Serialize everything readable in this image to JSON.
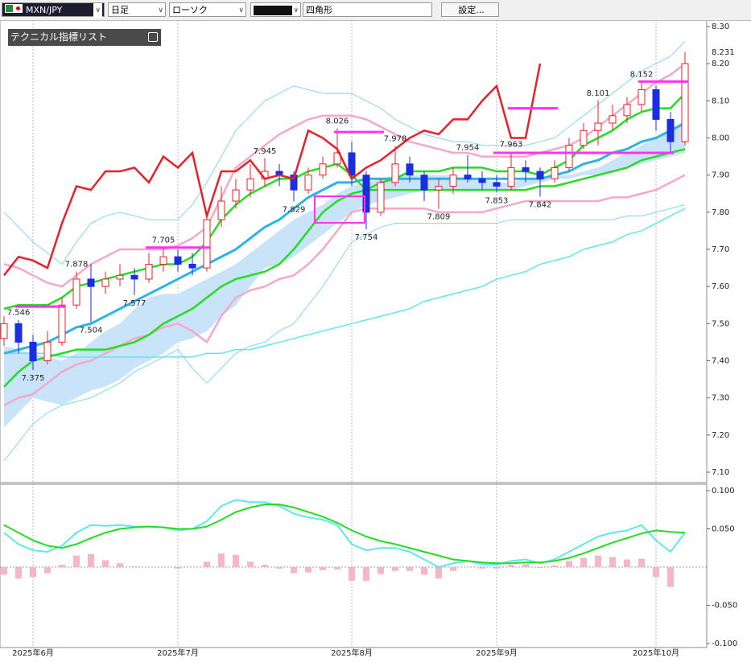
{
  "toolbar": {
    "symbol": "MXN/JPY",
    "timeframe": "日足",
    "chart_type": "ローソク",
    "tool": "四角形",
    "settings_button": "設定...",
    "indicator_list": "テクニカル指標リスト"
  },
  "chart_data": [
    {
      "type": "candlestick",
      "categories": [
        null,
        null,
        "2025年6月",
        null,
        null,
        null,
        null,
        null,
        null,
        null,
        null,
        null,
        "2025年7月",
        null,
        null,
        null,
        null,
        null,
        null,
        null,
        null,
        null,
        null,
        null,
        "2025年8月",
        null,
        null,
        null,
        null,
        null,
        null,
        null,
        null,
        null,
        "2025年9月",
        null,
        null,
        null,
        null,
        null,
        null,
        null,
        null,
        null,
        null,
        "2025年10月",
        null,
        null
      ],
      "open": [
        7.46,
        7.5,
        7.45,
        7.4,
        7.45,
        7.55,
        7.62,
        7.6,
        7.62,
        7.63,
        7.62,
        7.66,
        7.68,
        7.66,
        7.65,
        7.78,
        7.83,
        7.86,
        7.89,
        7.91,
        7.9,
        7.86,
        7.9,
        7.93,
        7.96,
        7.9,
        7.8,
        7.88,
        7.93,
        7.9,
        7.86,
        7.87,
        7.9,
        7.89,
        7.88,
        7.87,
        7.92,
        7.91,
        7.89,
        7.92,
        7.98,
        8.02,
        8.04,
        8.06,
        8.09,
        8.13,
        8.05,
        7.99
      ],
      "high": [
        7.52,
        7.51,
        7.47,
        7.48,
        7.57,
        7.64,
        7.66,
        7.64,
        7.66,
        7.65,
        7.69,
        7.705,
        7.7,
        7.69,
        7.8,
        7.87,
        7.89,
        7.93,
        7.945,
        7.93,
        7.91,
        7.92,
        7.95,
        8.026,
        7.99,
        7.91,
        7.89,
        7.978,
        7.95,
        7.91,
        7.89,
        7.92,
        7.954,
        7.91,
        7.9,
        7.963,
        7.94,
        7.92,
        7.94,
        8.0,
        8.04,
        8.101,
        8.09,
        8.11,
        8.152,
        8.14,
        8.07,
        8.231
      ],
      "low": [
        7.44,
        7.42,
        7.375,
        7.39,
        7.44,
        7.54,
        7.504,
        7.58,
        7.6,
        7.577,
        7.61,
        7.64,
        7.64,
        7.63,
        7.64,
        7.76,
        7.81,
        7.84,
        7.87,
        7.87,
        7.829,
        7.85,
        7.89,
        7.92,
        7.87,
        7.754,
        7.79,
        7.87,
        7.88,
        7.83,
        7.809,
        7.85,
        7.88,
        7.86,
        7.853,
        7.86,
        7.88,
        7.842,
        7.88,
        7.91,
        7.97,
        7.98,
        8.02,
        8.04,
        8.07,
        8.02,
        7.96,
        7.98
      ],
      "close": [
        7.5,
        7.45,
        7.4,
        7.45,
        7.55,
        7.62,
        7.6,
        7.62,
        7.63,
        7.62,
        7.66,
        7.68,
        7.66,
        7.65,
        7.78,
        7.83,
        7.86,
        7.89,
        7.91,
        7.9,
        7.86,
        7.9,
        7.93,
        7.96,
        7.9,
        7.8,
        7.88,
        7.93,
        7.9,
        7.86,
        7.87,
        7.9,
        7.89,
        7.88,
        7.87,
        7.92,
        7.91,
        7.89,
        7.92,
        7.98,
        8.02,
        8.04,
        8.06,
        8.09,
        8.13,
        8.05,
        7.99,
        8.2
      ],
      "up_color": "#e8202a",
      "down_color": "#1a2ee0",
      "cloud": {
        "color": "#c9e3f8",
        "a": [
          7.44,
          7.43,
          7.42,
          7.41,
          7.4,
          7.42,
          7.45,
          7.48,
          7.5,
          7.54,
          7.57,
          7.58,
          7.58,
          7.6,
          7.62,
          7.64,
          7.66,
          7.69,
          7.72,
          7.75,
          7.78,
          7.8,
          7.82,
          7.85,
          7.87,
          7.88,
          7.89,
          7.9,
          7.9,
          7.9,
          7.9,
          7.9,
          7.89,
          7.89,
          7.88,
          7.88,
          7.89,
          7.89,
          7.9,
          7.9,
          7.91,
          7.92,
          7.94,
          7.96,
          7.98,
          8.0,
          8.02,
          8.05
        ],
        "b": [
          7.22,
          7.26,
          7.3,
          7.29,
          7.28,
          7.3,
          7.32,
          7.33,
          7.35,
          7.38,
          7.4,
          7.42,
          7.45,
          7.46,
          7.48,
          7.52,
          7.55,
          7.6,
          7.65,
          7.66,
          7.68,
          7.71,
          7.74,
          7.77,
          7.8,
          7.82,
          7.83,
          7.84,
          7.85,
          7.86,
          7.86,
          7.86,
          7.86,
          7.86,
          7.86,
          7.86,
          7.87,
          7.88,
          7.89,
          7.89,
          7.9,
          7.9,
          7.91,
          7.92,
          7.93,
          7.94,
          7.95,
          7.96
        ]
      },
      "series": [
        {
          "color": "#7fd8f0",
          "width": 1,
          "values": [
            7.8,
            7.76,
            7.72,
            7.69,
            7.66,
            7.72,
            7.77,
            7.79,
            7.8,
            7.79,
            7.78,
            7.78,
            7.78,
            7.82,
            7.88,
            7.95,
            8.02,
            8.06,
            8.1,
            8.12,
            8.14,
            8.13,
            8.12,
            8.12,
            8.12,
            8.1,
            8.08,
            8.05,
            8.03,
            8.01,
            8.0,
            7.99,
            7.99,
            7.98,
            7.98,
            7.98,
            7.98,
            7.99,
            8.0,
            8.03,
            8.06,
            8.09,
            8.12,
            8.15,
            8.18,
            8.2,
            8.22,
            8.26
          ]
        },
        {
          "color": "#7fd8f0",
          "width": 1,
          "values": [
            7.13,
            7.18,
            7.23,
            7.26,
            7.28,
            7.29,
            7.3,
            7.32,
            7.34,
            7.37,
            7.39,
            7.41,
            7.43,
            7.38,
            7.34,
            7.38,
            7.42,
            7.44,
            7.45,
            7.48,
            7.5,
            7.55,
            7.6,
            7.66,
            7.72,
            7.74,
            7.76,
            7.77,
            7.77,
            7.77,
            7.77,
            7.77,
            7.77,
            7.77,
            7.77,
            7.78,
            7.78,
            7.78,
            7.78,
            7.78,
            7.78,
            7.78,
            7.78,
            7.79,
            7.79,
            7.8,
            7.81,
            7.82
          ]
        },
        {
          "color": "#f5a8c8",
          "width": 2.5,
          "values": [
            7.66,
            7.65,
            7.63,
            7.61,
            7.6,
            7.63,
            7.66,
            7.68,
            7.7,
            7.7,
            7.7,
            7.7,
            7.71,
            7.73,
            7.76,
            7.84,
            7.92,
            7.95,
            7.98,
            8.01,
            8.03,
            8.05,
            8.06,
            8.06,
            8.06,
            8.05,
            8.03,
            8.01,
            7.99,
            7.98,
            7.97,
            7.96,
            7.96,
            7.95,
            7.95,
            7.95,
            7.95,
            7.96,
            7.97,
            7.98,
            8.0,
            8.03,
            8.06,
            8.09,
            8.12,
            8.15,
            8.17,
            8.2
          ]
        },
        {
          "color": "#f5a8c8",
          "width": 2.5,
          "values": [
            7.28,
            7.3,
            7.31,
            7.34,
            7.37,
            7.39,
            7.4,
            7.42,
            7.44,
            7.46,
            7.47,
            7.49,
            7.5,
            7.48,
            7.45,
            7.52,
            7.57,
            7.59,
            7.6,
            7.62,
            7.63,
            7.66,
            7.7,
            7.75,
            7.8,
            7.81,
            7.81,
            7.81,
            7.81,
            7.81,
            7.8,
            7.8,
            7.8,
            7.8,
            7.81,
            7.82,
            7.83,
            7.83,
            7.83,
            7.83,
            7.83,
            7.83,
            7.84,
            7.84,
            7.85,
            7.86,
            7.88,
            7.9
          ]
        },
        {
          "color": "#5de8f0",
          "width": 1.5,
          "values": [
            7.42,
            7.42,
            7.42,
            7.42,
            7.41,
            7.41,
            7.41,
            7.41,
            7.41,
            7.41,
            7.41,
            7.41,
            7.41,
            7.41,
            7.42,
            7.42,
            7.43,
            7.43,
            7.44,
            7.45,
            7.46,
            7.47,
            7.48,
            7.49,
            7.5,
            7.51,
            7.52,
            7.53,
            7.54,
            7.56,
            7.57,
            7.58,
            7.59,
            7.6,
            7.62,
            7.63,
            7.64,
            7.66,
            7.67,
            7.68,
            7.7,
            7.71,
            7.72,
            7.74,
            7.75,
            7.77,
            7.79,
            7.81
          ]
        },
        {
          "color": "#2bb4ea",
          "width": 3,
          "values": [
            7.42,
            7.43,
            7.44,
            7.45,
            7.47,
            7.49,
            7.5,
            7.52,
            7.54,
            7.56,
            7.58,
            7.6,
            7.62,
            7.64,
            7.66,
            7.68,
            7.7,
            7.73,
            7.76,
            7.78,
            7.81,
            7.84,
            7.86,
            7.88,
            7.88,
            7.89,
            7.89,
            7.89,
            7.89,
            7.89,
            7.89,
            7.89,
            7.89,
            7.89,
            7.89,
            7.89,
            7.89,
            7.89,
            7.9,
            7.91,
            7.93,
            7.94,
            7.96,
            7.97,
            7.99,
            8.0,
            8.02,
            8.04
          ]
        },
        {
          "color": "#22dd22",
          "width": 2.5,
          "values": [
            7.33,
            7.37,
            7.4,
            7.41,
            7.42,
            7.43,
            7.43,
            7.43,
            7.44,
            7.45,
            7.47,
            7.5,
            7.52,
            7.54,
            7.57,
            7.6,
            7.62,
            7.63,
            7.64,
            7.66,
            7.7,
            7.75,
            7.8,
            7.83,
            7.85,
            7.86,
            7.86,
            7.86,
            7.86,
            7.86,
            7.86,
            7.86,
            7.86,
            7.86,
            7.86,
            7.86,
            7.86,
            7.87,
            7.87,
            7.88,
            7.89,
            7.9,
            7.91,
            7.92,
            7.94,
            7.95,
            7.96,
            7.97
          ]
        },
        {
          "color": "#22dd22",
          "width": 2.5,
          "values": [
            7.54,
            7.55,
            7.55,
            7.55,
            7.57,
            7.6,
            7.61,
            7.62,
            7.63,
            7.64,
            7.65,
            7.66,
            7.66,
            7.68,
            7.72,
            7.78,
            7.82,
            7.85,
            7.87,
            7.89,
            7.89,
            7.91,
            7.92,
            7.93,
            7.9,
            7.86,
            7.88,
            7.89,
            7.91,
            7.91,
            7.91,
            7.92,
            7.92,
            7.92,
            7.91,
            7.91,
            7.91,
            7.9,
            7.92,
            7.94,
            7.98,
            8.0,
            8.02,
            8.05,
            8.07,
            8.08,
            8.08,
            8.12
          ]
        },
        {
          "color": "#e8202a",
          "width": 2.5,
          "values": [
            7.63,
            7.68,
            7.67,
            7.65,
            7.77,
            7.87,
            7.86,
            7.91,
            7.91,
            7.92,
            7.88,
            7.95,
            7.92,
            7.96,
            7.79,
            7.91,
            7.91,
            7.94,
            7.89,
            7.9,
            7.89,
            8.02,
            8.0,
            7.97,
            7.89,
            7.92,
            7.94,
            7.97,
            8.0,
            8.02,
            8.01,
            8.05,
            8.05,
            8.1,
            8.14,
            8.0,
            8.0,
            8.2,
            null,
            null,
            null,
            null,
            null,
            null,
            null,
            null,
            null,
            null
          ]
        }
      ],
      "levels": [
        7.546,
        7.705,
        8.016,
        8.08,
        7.96,
        8.152
      ],
      "level_color": "#ff33ee",
      "price_labels": [
        7.546,
        7.878,
        7.504,
        7.375,
        7.705,
        7.577,
        7.945,
        7.829,
        8.026,
        7.754,
        7.978,
        7.809,
        7.954,
        7.963,
        7.853,
        7.842,
        8.101,
        8.152
      ],
      "last_price": 8.231,
      "ylim": [
        7.1,
        8.3
      ],
      "yticks": [
        {
          "value": 8.3,
          "label": "8.30"
        },
        {
          "value": 8.2,
          "label": "8.20"
        },
        {
          "value": 8.1,
          "label": "8.10"
        },
        {
          "value": 8.0,
          "label": "8.00"
        },
        {
          "value": 7.9,
          "label": "7.90"
        },
        {
          "value": 7.8,
          "label": "7.80"
        },
        {
          "value": 7.7,
          "label": "7.70"
        },
        {
          "value": 7.6,
          "label": "7.60"
        },
        {
          "value": 7.5,
          "label": "7.50"
        },
        {
          "value": 7.4,
          "label": "7.40"
        },
        {
          "value": 7.3,
          "label": "7.30"
        },
        {
          "value": 7.2,
          "label": "7.20"
        },
        {
          "value": 7.1,
          "label": "7.10"
        }
      ],
      "grid_x": true
    },
    {
      "type": "macd",
      "series": [
        {
          "color": "#5de8f0",
          "values": [
            0.045,
            0.03,
            0.022,
            0.02,
            0.028,
            0.045,
            0.055,
            0.054,
            0.055,
            0.053,
            0.053,
            0.052,
            0.048,
            0.05,
            0.06,
            0.08,
            0.088,
            0.085,
            0.085,
            0.08,
            0.07,
            0.065,
            0.062,
            0.055,
            0.03,
            0.022,
            0.025,
            0.025,
            0.02,
            0.01,
            0.0,
            0.005,
            0.008,
            0.004,
            0.003,
            0.008,
            0.01,
            0.005,
            0.01,
            0.02,
            0.03,
            0.04,
            0.045,
            0.048,
            0.055,
            0.035,
            0.02,
            0.045
          ]
        },
        {
          "color": "#22dd22",
          "values": [
            0.055,
            0.045,
            0.035,
            0.028,
            0.025,
            0.03,
            0.038,
            0.045,
            0.05,
            0.052,
            0.053,
            0.052,
            0.05,
            0.05,
            0.053,
            0.062,
            0.072,
            0.078,
            0.082,
            0.082,
            0.078,
            0.072,
            0.066,
            0.058,
            0.048,
            0.04,
            0.034,
            0.03,
            0.025,
            0.02,
            0.015,
            0.01,
            0.008,
            0.006,
            0.005,
            0.005,
            0.006,
            0.006,
            0.008,
            0.012,
            0.018,
            0.025,
            0.032,
            0.038,
            0.044,
            0.048,
            0.046,
            0.045
          ]
        }
      ],
      "histogram": {
        "color": "#f7b5c5",
        "values": [
          -0.01,
          -0.015,
          -0.013,
          -0.008,
          0.003,
          0.015,
          0.017,
          0.009,
          0.005,
          0.001,
          0,
          0,
          -0.002,
          0,
          0.007,
          0.018,
          0.016,
          0.007,
          0.003,
          -0.002,
          -0.008,
          -0.007,
          -0.004,
          -0.003,
          -0.018,
          -0.018,
          -0.009,
          -0.005,
          -0.005,
          -0.01,
          -0.015,
          -0.005,
          0,
          -0.002,
          -0.002,
          0.003,
          0.004,
          -0.001,
          0.002,
          0.008,
          0.012,
          0.015,
          0.013,
          0.01,
          0.011,
          -0.013,
          -0.026,
          0
        ]
      },
      "ylim": [
        -0.1,
        0.1
      ],
      "yticks": [
        {
          "value": 0.1,
          "label": "0.100"
        },
        {
          "value": 0.05,
          "label": "0.050"
        },
        {
          "value": -0.05,
          "label": "-0.050"
        },
        {
          "value": -0.1,
          "label": "-0.100"
        }
      ]
    }
  ]
}
